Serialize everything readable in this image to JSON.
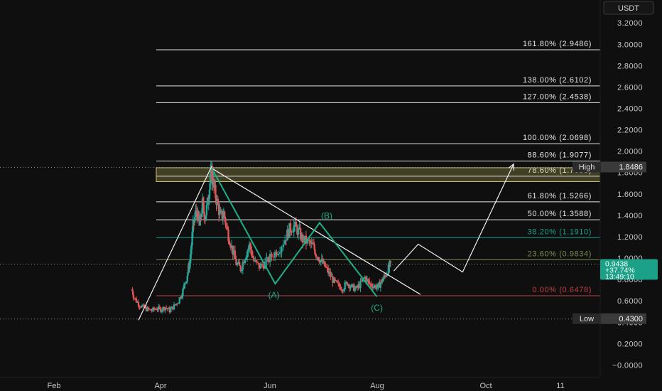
{
  "currency_button": "USDT",
  "colors": {
    "background": "#0f0f0f",
    "fib_white": "#e6e6e6",
    "fib_382": "#19a08a",
    "fib_236": "#7a8a52",
    "fib_0": "#c2404a",
    "zone_786": "#c8c06a",
    "candle_up": "#26a69a",
    "candle_down": "#e05555",
    "wave": "#1fae88",
    "current_price": "#1aa187",
    "label_bg": "#2a2a2a"
  },
  "chart_data": {
    "type": "candlestick",
    "ylim": [
      -0.2,
      3.3
    ],
    "y_ticks": [
      "−0.0000",
      "0.2000",
      "0.4000",
      "0.6000",
      "0.8000",
      "1.0000",
      "1.2000",
      "1.4000",
      "1.6000",
      "1.8000",
      "2.0000",
      "2.2000",
      "2.4000",
      "2.6000",
      "2.8000",
      "3.0000",
      "3.2000"
    ],
    "x_ticks": [
      "Feb",
      "Apr",
      "Jun",
      "Aug",
      "Oct",
      "11"
    ],
    "fib_levels": [
      {
        "label": "161.80% (2.9486)",
        "value": 2.9486
      },
      {
        "label": "138.00% (2.6102)",
        "value": 2.6102
      },
      {
        "label": "127.00% (2.4538)",
        "value": 2.4538
      },
      {
        "label": "100.00% (2.0698)",
        "value": 2.0698
      },
      {
        "label": "88.60% (1.9077)",
        "value": 1.9077
      },
      {
        "label": "78.60% (1.7655)",
        "value": 1.7655
      },
      {
        "label": "61.80% (1.5266)",
        "value": 1.5266
      },
      {
        "label": "50.00% (1.3588)",
        "value": 1.3588
      },
      {
        "label": "38.20% (1.1910)",
        "value": 1.191
      },
      {
        "label": "23.60% (0.9834)",
        "value": 0.9834
      },
      {
        "label": "0.00% (0.6478)",
        "value": 0.6478
      }
    ],
    "high": {
      "label": "High",
      "value_text": "1.8486",
      "value": 1.8486
    },
    "low": {
      "label": "Low",
      "value_text": "0.4300",
      "value": 0.43
    },
    "current": {
      "price": "0.9438",
      "change": "+37.74%",
      "countdown": "13:49:10",
      "value": 0.9438
    },
    "wave_labels": [
      "(A)",
      "(B)",
      "(C)"
    ],
    "wave_points": [
      {
        "x": 0.125,
        "y": 1.84
      },
      {
        "x": 0.268,
        "y": 0.76
      },
      {
        "x": 0.368,
        "y": 1.33
      },
      {
        "x": 0.497,
        "y": 0.64
      }
    ],
    "impulse_line": [
      {
        "x": -0.04,
        "y": 0.42
      },
      {
        "x": 0.125,
        "y": 1.86
      }
    ],
    "trendline": [
      {
        "x": 0.125,
        "y": 1.84
      },
      {
        "x": 0.595,
        "y": 0.66
      }
    ],
    "projection": [
      {
        "x": 0.535,
        "y": 0.88
      },
      {
        "x": 0.59,
        "y": 1.13
      },
      {
        "x": 0.69,
        "y": 0.87
      },
      {
        "x": 0.805,
        "y": 1.88
      }
    ],
    "close_path": [
      [
        -0.055,
        0.71
      ],
      [
        -0.05,
        0.63
      ],
      [
        -0.04,
        0.57
      ],
      [
        -0.03,
        0.54
      ],
      [
        -0.02,
        0.52
      ],
      [
        -0.01,
        0.51
      ],
      [
        0.0,
        0.53
      ],
      [
        0.01,
        0.52
      ],
      [
        0.02,
        0.54
      ],
      [
        0.03,
        0.51
      ],
      [
        0.04,
        0.55
      ],
      [
        0.05,
        0.6
      ],
      [
        0.06,
        0.7
      ],
      [
        0.07,
        0.85
      ],
      [
        0.075,
        0.95
      ],
      [
        0.083,
        1.3
      ],
      [
        0.09,
        1.45
      ],
      [
        0.097,
        1.3
      ],
      [
        0.104,
        1.5
      ],
      [
        0.11,
        1.38
      ],
      [
        0.117,
        1.55
      ],
      [
        0.121,
        1.7
      ],
      [
        0.125,
        1.82
      ],
      [
        0.13,
        1.65
      ],
      [
        0.137,
        1.52
      ],
      [
        0.145,
        1.38
      ],
      [
        0.152,
        1.42
      ],
      [
        0.16,
        1.25
      ],
      [
        0.17,
        1.1
      ],
      [
        0.18,
        0.95
      ],
      [
        0.19,
        0.9
      ],
      [
        0.2,
        1.02
      ],
      [
        0.21,
        1.12
      ],
      [
        0.22,
        0.97
      ],
      [
        0.232,
        0.92
      ],
      [
        0.245,
        0.95
      ],
      [
        0.26,
        1.02
      ],
      [
        0.275,
        1.08
      ],
      [
        0.29,
        1.18
      ],
      [
        0.3,
        1.27
      ],
      [
        0.31,
        1.3
      ],
      [
        0.32,
        1.25
      ],
      [
        0.33,
        1.17
      ],
      [
        0.345,
        1.14
      ],
      [
        0.355,
        1.1
      ],
      [
        0.36,
        1.04
      ],
      [
        0.37,
        0.98
      ],
      [
        0.38,
        0.92
      ],
      [
        0.39,
        0.85
      ],
      [
        0.4,
        0.78
      ],
      [
        0.41,
        0.74
      ],
      [
        0.42,
        0.72
      ],
      [
        0.43,
        0.77
      ],
      [
        0.44,
        0.73
      ],
      [
        0.45,
        0.71
      ],
      [
        0.46,
        0.76
      ],
      [
        0.47,
        0.82
      ],
      [
        0.48,
        0.76
      ],
      [
        0.49,
        0.74
      ],
      [
        0.5,
        0.73
      ],
      [
        0.507,
        0.78
      ],
      [
        0.515,
        0.83
      ],
      [
        0.523,
        0.9
      ],
      [
        0.528,
        0.95
      ]
    ]
  }
}
